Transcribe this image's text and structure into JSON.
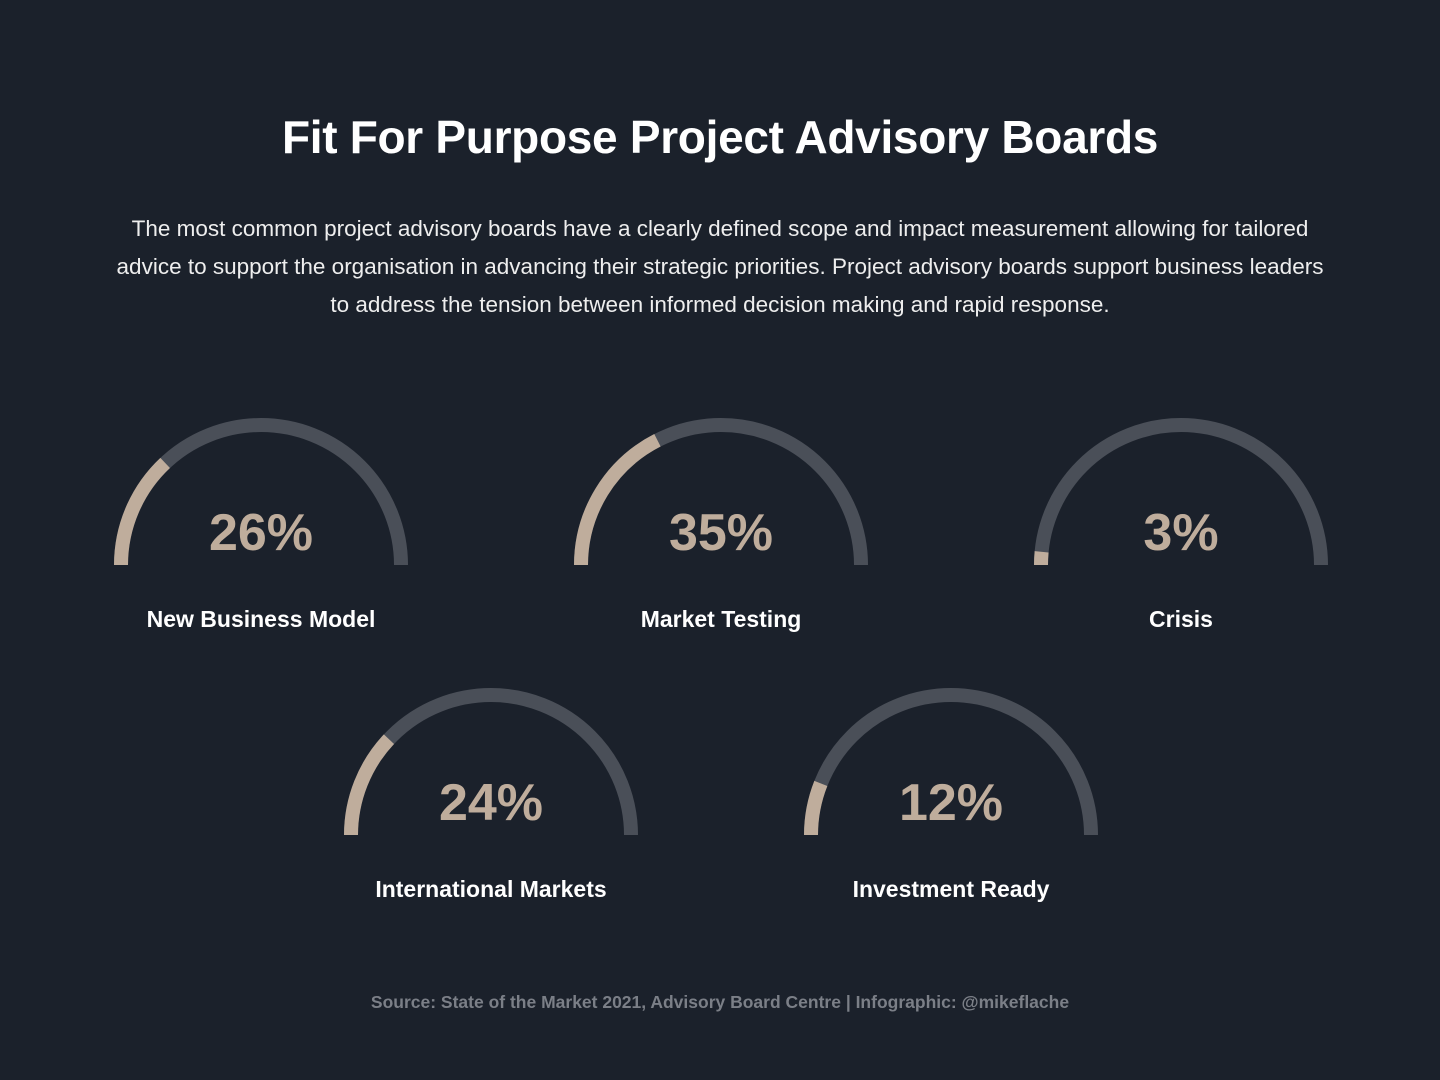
{
  "title": "Fit For Purpose Project Advisory Boards",
  "intro": "The most common project advisory boards have a clearly defined scope and impact measurement allowing for tailored advice to support the organisation in advancing their strategic priorities. Project advisory boards support business leaders to address the tension between informed decision making and rapid response.",
  "source": "Source: State of the Market 2021, Advisory Board Centre | Infographic: @mikeflache",
  "colors": {
    "background": "#1b212b",
    "track": "#4a4f58",
    "fill": "#bfad9c",
    "value_text": "#bfad9c",
    "label_text": "#ffffff",
    "source_text": "#7b7f87"
  },
  "chart_data": {
    "type": "gauge",
    "max": 100,
    "items": [
      {
        "label": "New Business Model",
        "value": 26,
        "display": "26%"
      },
      {
        "label": "Market Testing",
        "value": 35,
        "display": "35%"
      },
      {
        "label": "Crisis",
        "value": 3,
        "display": "3%"
      },
      {
        "label": "International Markets",
        "value": 24,
        "display": "24%"
      },
      {
        "label": "Investment Ready",
        "value": 12,
        "display": "12%"
      }
    ]
  }
}
